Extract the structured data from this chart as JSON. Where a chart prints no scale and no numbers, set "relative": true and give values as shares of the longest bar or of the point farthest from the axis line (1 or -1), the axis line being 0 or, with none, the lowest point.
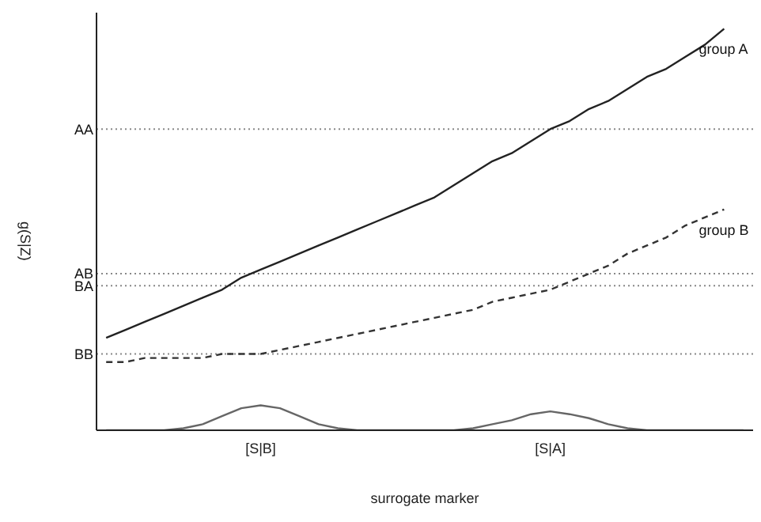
{
  "chart_data": {
    "type": "line",
    "relative": true,
    "xlabel": "surrogate marker",
    "ylabel": "g(S|Z)",
    "categories": [
      null,
      null,
      null,
      null,
      null,
      null,
      null,
      null,
      "[S|B]",
      null,
      null,
      null,
      null,
      null,
      null,
      null,
      null,
      null,
      null,
      null,
      null,
      null,
      null,
      "[S|A]",
      null,
      null,
      null,
      null,
      null,
      null,
      null,
      null,
      null,
      null
    ],
    "series": [
      {
        "name": "group A",
        "color": "#222222",
        "line_style": "solid",
        "values": [
          0.23,
          0.25,
          0.27,
          0.29,
          0.31,
          0.33,
          0.35,
          0.38,
          0.4,
          0.42,
          0.44,
          0.46,
          0.48,
          0.5,
          0.52,
          0.54,
          0.56,
          0.58,
          0.61,
          0.64,
          0.67,
          0.69,
          0.72,
          0.75,
          0.77,
          0.8,
          0.82,
          0.85,
          0.88,
          0.9,
          0.93,
          0.96,
          1.0,
          null
        ]
      },
      {
        "name": "group B",
        "color": "#333333",
        "line_style": "dashed",
        "values": [
          0.17,
          0.17,
          0.18,
          0.18,
          0.18,
          0.18,
          0.19,
          0.19,
          0.19,
          0.2,
          0.21,
          0.22,
          0.23,
          0.24,
          0.25,
          0.26,
          0.27,
          0.28,
          0.29,
          0.3,
          0.32,
          0.33,
          0.34,
          0.35,
          0.37,
          0.39,
          0.41,
          0.44,
          0.46,
          0.48,
          0.51,
          0.53,
          0.55,
          null
        ]
      },
      {
        "color": "#666666",
        "line_style": "solid",
        "values": [
          0,
          0,
          0,
          0,
          0.005,
          0.015,
          0.035,
          0.055,
          0.062,
          0.055,
          0.035,
          0.015,
          0.005,
          0,
          0,
          0,
          0,
          0,
          0,
          0.005,
          0.015,
          0.025,
          0.04,
          0.047,
          0.04,
          0.03,
          0.015,
          0.005,
          0,
          0,
          0,
          0,
          0,
          0
        ]
      }
    ],
    "ref_lines": [
      {
        "axis": "y",
        "value": 0.75,
        "label": "AA",
        "color": "#888888",
        "line_style": "dotted"
      },
      {
        "axis": "y",
        "value": 0.39,
        "label": "AB",
        "color": "#888888",
        "line_style": "dotted"
      },
      {
        "axis": "y",
        "value": 0.36,
        "label": "BA",
        "color": "#888888",
        "line_style": "dotted"
      },
      {
        "axis": "y",
        "value": 0.19,
        "label": "BB",
        "color": "#888888",
        "line_style": "dotted"
      }
    ],
    "legend": false,
    "grid": false,
    "marker": "none"
  }
}
